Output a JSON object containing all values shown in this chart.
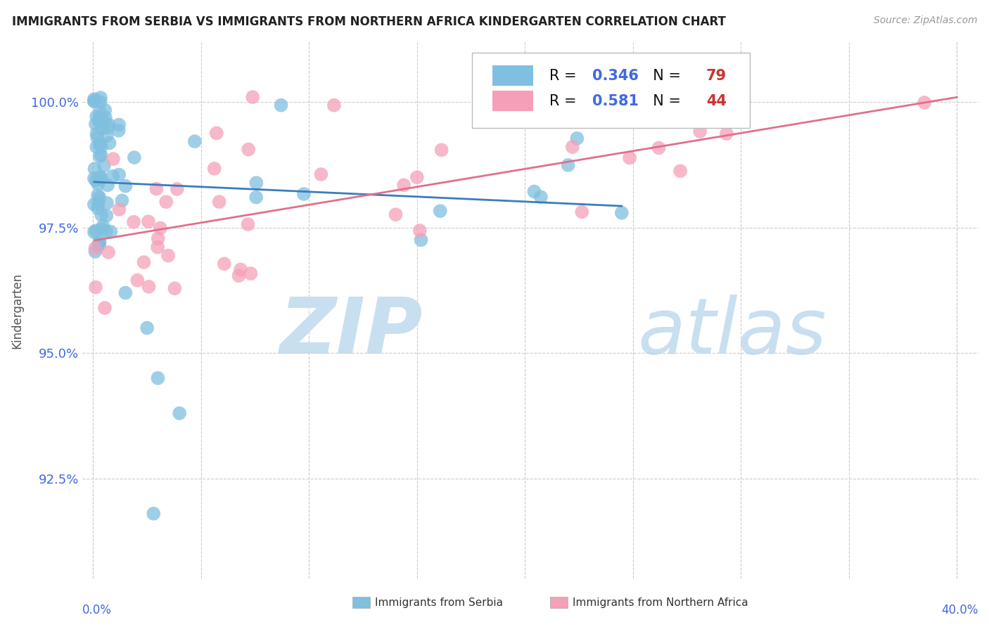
{
  "title": "IMMIGRANTS FROM SERBIA VS IMMIGRANTS FROM NORTHERN AFRICA KINDERGARTEN CORRELATION CHART",
  "source": "Source: ZipAtlas.com",
  "ylabel": "Kindergarten",
  "ytick_vals": [
    92.5,
    95.0,
    97.5,
    100.0
  ],
  "xlim": [
    -0.5,
    41.0
  ],
  "ylim": [
    90.5,
    101.2
  ],
  "legend1_label": "Immigrants from Serbia",
  "legend2_label": "Immigrants from Northern Africa",
  "R1": 0.346,
  "N1": 79,
  "R2": 0.581,
  "N2": 44,
  "color1": "#7fbfdf",
  "color2": "#f5a0b8",
  "color1_line": "#3a7dbf",
  "color2_line": "#e0708a",
  "title_color": "#222222",
  "tick_color": "#4169e1",
  "watermark_color": "#c8dff0"
}
